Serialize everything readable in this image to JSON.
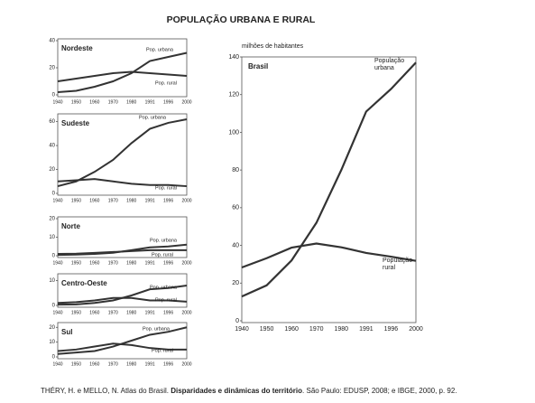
{
  "title": "POPULAÇÃO URBANA E RURAL",
  "chart_data": [
    {
      "type": "line",
      "title": "Nordeste",
      "categories": [
        "1940",
        "1950",
        "1960",
        "1970",
        "1980",
        "1991",
        "1996",
        "2000"
      ],
      "series": [
        {
          "name": "Pop. urbana",
          "color": "#333333",
          "values": [
            2,
            3,
            6,
            10,
            16,
            25,
            28,
            31
          ]
        },
        {
          "name": "Pop. rural",
          "color": "#333333",
          "values": [
            10,
            12,
            14,
            16,
            17,
            16,
            15,
            14
          ]
        }
      ],
      "ylim": [
        0,
        40
      ],
      "yticks": [
        0,
        20,
        40
      ]
    },
    {
      "type": "line",
      "title": "Sudeste",
      "categories": [
        "1940",
        "1950",
        "1960",
        "1970",
        "1980",
        "1991",
        "1996",
        "2000"
      ],
      "series": [
        {
          "name": "Pop. urbana",
          "color": "#333333",
          "values": [
            6,
            10,
            18,
            28,
            42,
            54,
            59,
            62
          ]
        },
        {
          "name": "Pop. rural",
          "color": "#333333",
          "values": [
            10,
            11,
            12,
            10,
            8,
            7,
            7,
            6
          ]
        }
      ],
      "ylim": [
        0,
        65
      ],
      "yticks": [
        0,
        20,
        40,
        60
      ]
    },
    {
      "type": "line",
      "title": "Norte",
      "categories": [
        "1940",
        "1950",
        "1960",
        "1970",
        "1980",
        "1991",
        "1996",
        "2000"
      ],
      "series": [
        {
          "name": "Pop. urbana",
          "color": "#333333",
          "values": [
            0.4,
            0.6,
            1,
            1.6,
            3,
            4.5,
            5,
            6
          ]
        },
        {
          "name": "Pop. rural",
          "color": "#333333",
          "values": [
            1,
            1.1,
            1.5,
            2,
            2.5,
            3,
            3,
            3
          ]
        }
      ],
      "ylim": [
        0,
        20
      ],
      "yticks": [
        0,
        10,
        20
      ]
    },
    {
      "type": "line",
      "title": "Centro-Oeste",
      "categories": [
        "1940",
        "1950",
        "1960",
        "1970",
        "1980",
        "1991",
        "1996",
        "2000"
      ],
      "series": [
        {
          "name": "Pop. urbana",
          "color": "#333333",
          "values": [
            0.3,
            0.4,
            1,
            2,
            4,
            6.5,
            7,
            8
          ]
        },
        {
          "name": "Pop. rural",
          "color": "#333333",
          "values": [
            1,
            1.3,
            2,
            3,
            3,
            2,
            2,
            1.5
          ]
        }
      ],
      "ylim": [
        0,
        12
      ],
      "yticks": [
        0,
        10
      ]
    },
    {
      "type": "line",
      "title": "Sul",
      "categories": [
        "1940",
        "1950",
        "1960",
        "1970",
        "1980",
        "1991",
        "1996",
        "2000"
      ],
      "series": [
        {
          "name": "Pop. urbana",
          "color": "#333333",
          "values": [
            2,
            3,
            4,
            7,
            11,
            15,
            17,
            20
          ]
        },
        {
          "name": "Pop. rural",
          "color": "#333333",
          "values": [
            4,
            5,
            7,
            9,
            8,
            6,
            5,
            5
          ]
        }
      ],
      "ylim": [
        0,
        22
      ],
      "yticks": [
        0,
        10,
        20
      ]
    },
    {
      "type": "line",
      "title": "Brasil",
      "y_label": "milhões de habitantes",
      "categories": [
        "1940",
        "1950",
        "1960",
        "1970",
        "1980",
        "1991",
        "1996",
        "2000"
      ],
      "series": [
        {
          "name": "População urbana",
          "color": "#333333",
          "values": [
            12.9,
            18.8,
            32,
            52,
            80,
            111,
            123,
            137
          ]
        },
        {
          "name": "População rural",
          "color": "#333333",
          "values": [
            28.3,
            33.2,
            38.8,
            41,
            39,
            36,
            34,
            31.8
          ]
        }
      ],
      "ylim": [
        0,
        140
      ],
      "yticks": [
        0,
        20,
        40,
        60,
        80,
        100,
        120,
        140
      ]
    }
  ],
  "source": {
    "before": "THÉRY, H. e MELLO, N. Atlas do Brasil. ",
    "bold": "Disparidades e dinâmicas do território",
    "after": ". São Paulo: EDUSP, 2008; e IBGE, 2000, p. 92."
  }
}
